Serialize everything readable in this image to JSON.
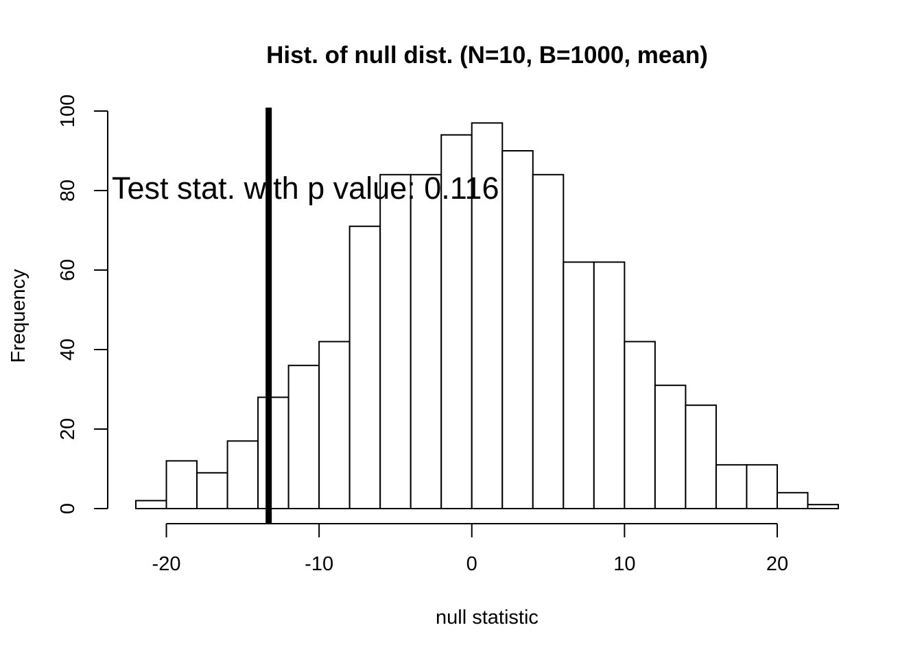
{
  "chart_data": {
    "type": "bar",
    "title": "Hist. of null dist. (N=10, B=1000, mean)",
    "xlabel": "null statistic",
    "ylabel": "Frequency",
    "bin_edges": [
      -22,
      -20,
      -18,
      -16,
      -14,
      -12,
      -10,
      -8,
      -6,
      -4,
      -2,
      0,
      2,
      4,
      6,
      8,
      10,
      12,
      14,
      16,
      18,
      20,
      22,
      24
    ],
    "values": [
      2,
      12,
      9,
      17,
      28,
      36,
      42,
      71,
      84,
      84,
      94,
      97,
      90,
      84,
      62,
      62,
      42,
      31,
      26,
      11,
      11,
      4,
      1
    ],
    "xlim": [
      -22,
      24
    ],
    "ylim": [
      0,
      100
    ],
    "x_ticks": [
      -20,
      -10,
      0,
      10,
      20
    ],
    "x_tick_labels": [
      "-20",
      "-10",
      "0",
      "10",
      "20"
    ],
    "y_ticks": [
      0,
      20,
      40,
      60,
      80,
      100
    ],
    "y_tick_labels": [
      "0",
      "20",
      "40",
      "60",
      "80",
      "100"
    ],
    "test_statistic": -13.3,
    "annotation": "Test stat. with p value: 0.116",
    "grid": false,
    "legend": "none"
  }
}
